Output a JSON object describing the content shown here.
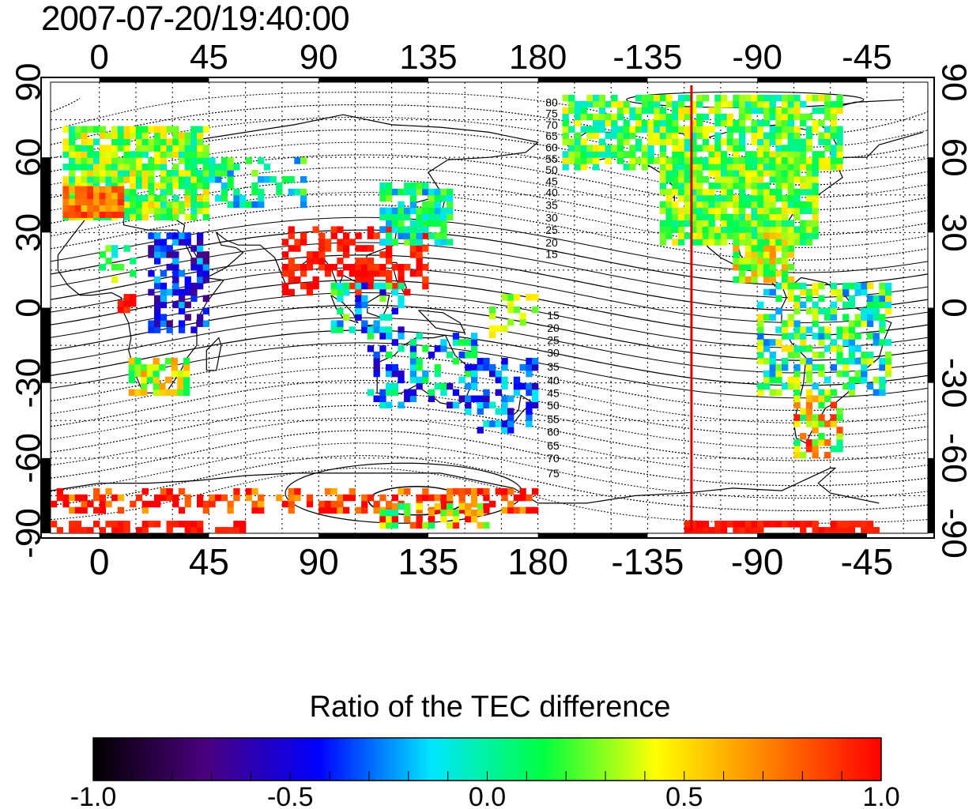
{
  "title": "2007-07-20/19:40:00",
  "map": {
    "x_tick_labels": [
      "0",
      "45",
      "90",
      "135",
      "180",
      "-135",
      "-90",
      "-45"
    ],
    "y_tick_labels_left": [
      "90",
      "60",
      "30",
      "0",
      "-30",
      "-60",
      "-90"
    ],
    "y_tick_labels_right": [
      "90",
      "60",
      "30",
      "0",
      "-30",
      "-60",
      "-90"
    ],
    "contour_labels_north": [
      "80",
      "75",
      "70",
      "65",
      "60",
      "55",
      "50",
      "45",
      "40",
      "35",
      "30",
      "25",
      "20",
      "15"
    ],
    "contour_labels_south": [
      "15",
      "20",
      "25",
      "30",
      "35",
      "40",
      "45",
      "50",
      "55",
      "60",
      "65",
      "70",
      "75"
    ],
    "terminator_longitude": -117,
    "terminator_color": "#e00000",
    "lon_range": [
      -20,
      340
    ],
    "lat_range": [
      -90,
      90
    ]
  },
  "colorbar": {
    "title": "Ratio of the TEC difference",
    "tick_labels": [
      "-1.0",
      "-0.5",
      "0.0",
      "0.5",
      "1.0"
    ],
    "range": [
      -1.0,
      1.0
    ],
    "colors": [
      "#000000",
      "#4b007f",
      "#0000ff",
      "#00e5ff",
      "#00ff40",
      "#ffff00",
      "#ff8000",
      "#ff0000"
    ]
  }
}
